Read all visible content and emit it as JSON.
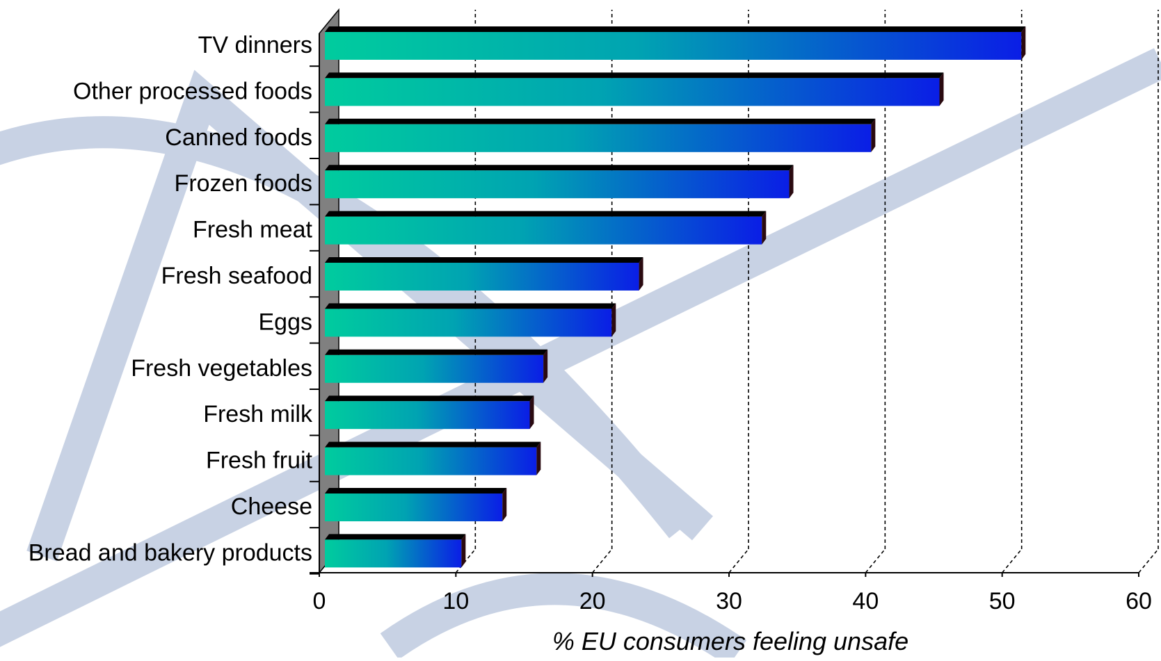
{
  "chart_data": {
    "type": "bar",
    "orientation": "horizontal",
    "style": "3d",
    "title": "",
    "xlabel": "% EU consumers feeling unsafe",
    "ylabel": "",
    "xlim": [
      0,
      60
    ],
    "x_ticks": [
      "0",
      "10",
      "20",
      "30",
      "40",
      "50",
      "60"
    ],
    "grid": "dashed vertical at 10, 20, 30, 40, 50",
    "categories": [
      "TV dinners",
      "Other processed foods",
      "Canned foods",
      "Frozen foods",
      "Fresh meat",
      "Fresh seafood",
      "Eggs",
      "Fresh vegetables",
      "Fresh milk",
      "Fresh fruit",
      "Cheese",
      "Bread and bakery products"
    ],
    "values": [
      51,
      45,
      40,
      34,
      32,
      23,
      21,
      16,
      15,
      15.5,
      13,
      10
    ],
    "colors": {
      "bar_start": "#00c8a0",
      "bar_mid": "#00a0b4",
      "bar_end": "#0a1ee6",
      "bar_top": "#000000",
      "bar_cap": "#2a0a10",
      "wall": "#808080",
      "watermark": "#c8d2e4"
    }
  }
}
